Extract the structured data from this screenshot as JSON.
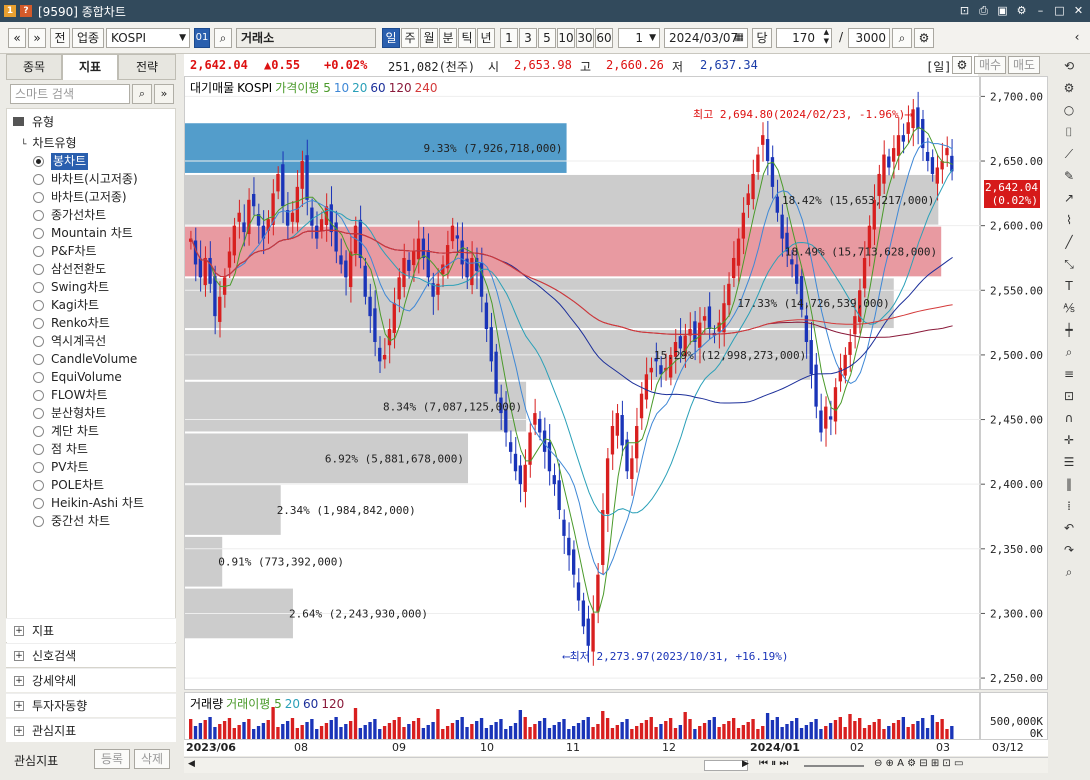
{
  "window": {
    "title": "[9590] 종합차트",
    "icons": [
      "pin-icon",
      "print-icon",
      "save-icon",
      "gear-icon",
      "minimize-icon",
      "maximize-icon",
      "close-icon"
    ]
  },
  "toolbar": {
    "nav_prev": "«",
    "nav_down": "»",
    "front_btn": "전",
    "sector_btn": "업종",
    "code": "KOSPI",
    "market_chip": "01",
    "exchange": "거래소",
    "periods": [
      "일",
      "주",
      "월",
      "분",
      "틱",
      "년"
    ],
    "selected_period": "일",
    "intervals": [
      "1",
      "3",
      "5",
      "10",
      "30",
      "60"
    ],
    "unit": "1",
    "date": "2024/03/07",
    "dang_btn": "당",
    "count": "170",
    "max_count": "3000"
  },
  "pricebar": {
    "close": "2,642.04",
    "change": "▲0.55",
    "change_pct": "+0.02%",
    "volume": "251,082(천주)",
    "open_label": "시",
    "open": "2,653.98",
    "high_label": "고",
    "high": "2,660.26",
    "low_label": "저",
    "low": "2,637.34",
    "right_label": "[일]",
    "buy_btn": "매수",
    "sell_btn": "매도"
  },
  "left": {
    "tabs": [
      "종목",
      "지표",
      "전략"
    ],
    "active_tab": "지표",
    "search_placeholder": "스마트 검색",
    "group_type": "유형",
    "subgroup": "차트유형",
    "chart_types": [
      "봉차트",
      "바차트(시고저종)",
      "바차트(고저종)",
      "종가선차트",
      "Mountain 차트",
      "P&F차트",
      "삼선전환도",
      "Swing차트",
      "Kagi차트",
      "Renko차트",
      "역시계곡선",
      "CandleVolume",
      "EquiVolume",
      "FLOW차트",
      "분산형차트",
      "계단 차트",
      "점 차트",
      "PV차트",
      "POLE차트",
      "Heikin-Ashi 차트",
      "중간선 차트"
    ],
    "selected_type": "봉차트",
    "collapsed": [
      "지표",
      "신호검색",
      "강세약세",
      "투자자동향",
      "관심지표"
    ],
    "footer_label": "관심지표",
    "footer_register": "등록",
    "footer_delete": "삭제"
  },
  "legend": {
    "items": [
      "대기매물",
      "KOSPI",
      "가격이평 5",
      "10",
      "20",
      "60",
      "120",
      "240"
    ],
    "colors": [
      "#000000",
      "#000000",
      "#4a9a2a",
      "#3f88d6",
      "#2aa0b8",
      "#1c2f9a",
      "#8a1a3a",
      "#d43a3a"
    ]
  },
  "volume_legend": {
    "items": [
      "거래량",
      "거래이평 5",
      "20",
      "60",
      "120"
    ],
    "colors": [
      "#000000",
      "#4a9a2a",
      "#2aa0b8",
      "#1c2f9a",
      "#8a1a3a"
    ]
  },
  "annotations": {
    "high": "최고 2,694.80(2024/02/23, -1.96%)⟶",
    "low": "⟵최저 2,273.97(2023/10/31, +16.19%)"
  },
  "current_price_tag": {
    "price": "2,642.04",
    "pct": "(0.02%)"
  },
  "y_axis": {
    "ticks": [
      "2,700.00",
      "2,650.00",
      "2,600.00",
      "2,550.00",
      "2,500.00",
      "2,450.00",
      "2,400.00",
      "2,350.00",
      "2,300.00",
      "2,250.00"
    ]
  },
  "vol_axis": {
    "ticks": [
      "500,000K",
      "0K"
    ]
  },
  "x_axis": {
    "labels": [
      "2023/06",
      "08",
      "09",
      "10",
      "11",
      "12",
      "2024/01",
      "02",
      "03"
    ],
    "right": "03/12"
  },
  "chart_data": {
    "type": "candlestick",
    "ylim": [
      2240,
      2715
    ],
    "supply_zones": [
      {
        "price_from": 2640,
        "price_to": 2680,
        "pct": "9.33%",
        "volume": "7,926,718,000",
        "color": "#4a98c8"
      },
      {
        "price_from": 2600,
        "price_to": 2640,
        "pct": "18.42%",
        "volume": "15,653,217,000",
        "color": "#c9c9c9"
      },
      {
        "price_from": 2560,
        "price_to": 2600,
        "pct": "18.49%",
        "volume": "15,713,628,000",
        "color": "#e7959c"
      },
      {
        "price_from": 2520,
        "price_to": 2560,
        "pct": "17.33%",
        "volume": "14,726,539,000",
        "color": "#c9c9c9"
      },
      {
        "price_from": 2480,
        "price_to": 2520,
        "pct": "15.29%",
        "volume": "12,998,273,000",
        "color": "#c9c9c9"
      },
      {
        "price_from": 2440,
        "price_to": 2480,
        "pct": "8.34%",
        "volume": "7,087,125,000",
        "color": "#c9c9c9"
      },
      {
        "price_from": 2400,
        "price_to": 2440,
        "pct": "6.92%",
        "volume": "5,881,678,000",
        "color": "#c9c9c9"
      },
      {
        "price_from": 2360,
        "price_to": 2400,
        "pct": "2.34%",
        "volume": "1,984,842,000",
        "color": "#c9c9c9"
      },
      {
        "price_from": 2320,
        "price_to": 2360,
        "pct": "0.91%",
        "volume": "773,392,000",
        "color": "#c9c9c9"
      },
      {
        "price_from": 2280,
        "price_to": 2320,
        "pct": "2.64%",
        "volume": "2,243,930,000",
        "color": "#c9c9c9"
      }
    ],
    "closes": [
      2590,
      2570,
      2560,
      2575,
      2555,
      2530,
      2545,
      2560,
      2580,
      2600,
      2610,
      2595,
      2620,
      2615,
      2600,
      2590,
      2605,
      2625,
      2640,
      2615,
      2600,
      2610,
      2630,
      2650,
      2620,
      2600,
      2590,
      2605,
      2615,
      2595,
      2580,
      2570,
      2560,
      2580,
      2600,
      2575,
      2545,
      2530,
      2510,
      2495,
      2500,
      2520,
      2540,
      2560,
      2575,
      2565,
      2580,
      2590,
      2575,
      2560,
      2545,
      2555,
      2570,
      2585,
      2600,
      2590,
      2570,
      2560,
      2575,
      2565,
      2545,
      2520,
      2495,
      2470,
      2455,
      2440,
      2425,
      2410,
      2400,
      2415,
      2440,
      2455,
      2440,
      2425,
      2410,
      2400,
      2380,
      2360,
      2345,
      2330,
      2310,
      2290,
      2275,
      2300,
      2330,
      2380,
      2420,
      2445,
      2455,
      2430,
      2410,
      2420,
      2445,
      2470,
      2485,
      2490,
      2495,
      2485,
      2490,
      2500,
      2510,
      2505,
      2515,
      2520,
      2510,
      2525,
      2530,
      2520,
      2515,
      2525,
      2540,
      2555,
      2575,
      2590,
      2610,
      2625,
      2640,
      2655,
      2670,
      2650,
      2630,
      2610,
      2590,
      2580,
      2570,
      2555,
      2535,
      2510,
      2485,
      2460,
      2440,
      2460,
      2450,
      2475,
      2490,
      2500,
      2510,
      2530,
      2550,
      2575,
      2600,
      2620,
      2640,
      2655,
      2645,
      2660,
      2670,
      2665,
      2680,
      2690,
      2675,
      2660,
      2650,
      2640,
      2645,
      2650,
      2660,
      2642
    ]
  }
}
